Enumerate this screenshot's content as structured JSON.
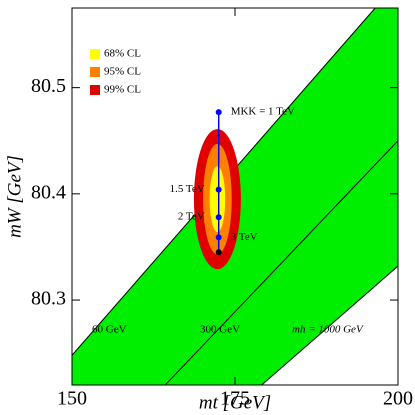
{
  "chart_data": {
    "type": "line",
    "xlabel": "mt  [GeV]",
    "ylabel": "mW  [GeV]",
    "xlim": [
      150,
      200
    ],
    "ylim": [
      80.22,
      80.575
    ],
    "xticks": [
      150,
      175,
      200
    ],
    "yticks": [
      80.3,
      80.4,
      80.5
    ],
    "band_color": "#00ee00",
    "series": [
      {
        "name": "60 GeV",
        "color": "#000000",
        "x": [
          150,
          196.5
        ],
        "y": [
          80.248,
          80.575
        ]
      },
      {
        "name": "300 GeV",
        "color": "#000000",
        "x": [
          164.3,
          200
        ],
        "y": [
          80.22,
          80.45
        ]
      },
      {
        "name": "mh = 1000 GeV",
        "color": "#000000",
        "x": [
          179.1,
          200
        ],
        "y": [
          80.22,
          80.332
        ]
      }
    ],
    "ellipses": [
      {
        "name": "99% CL",
        "color": "#e00000",
        "cx": 172.3,
        "cy": 80.395,
        "rx": 3.6,
        "ry": 0.066
      },
      {
        "name": "95% CL",
        "color": "#ff8000",
        "cx": 172.3,
        "cy": 80.395,
        "rx": 2.2,
        "ry": 0.052
      },
      {
        "name": "68% CL",
        "color": "#ffff00",
        "cx": 172.3,
        "cy": 80.395,
        "rx": 1.2,
        "ry": 0.031
      }
    ],
    "kk_line": {
      "color": "#0000ff",
      "x": [
        172.5,
        172.5,
        172.5,
        172.5,
        172.5
      ],
      "y": [
        80.477,
        80.404,
        80.378,
        80.359,
        80.345
      ],
      "labels": [
        "MKK = 1 TeV",
        "1.5 TeV",
        "2 TeV",
        "3 TeV",
        null
      ]
    }
  }
}
